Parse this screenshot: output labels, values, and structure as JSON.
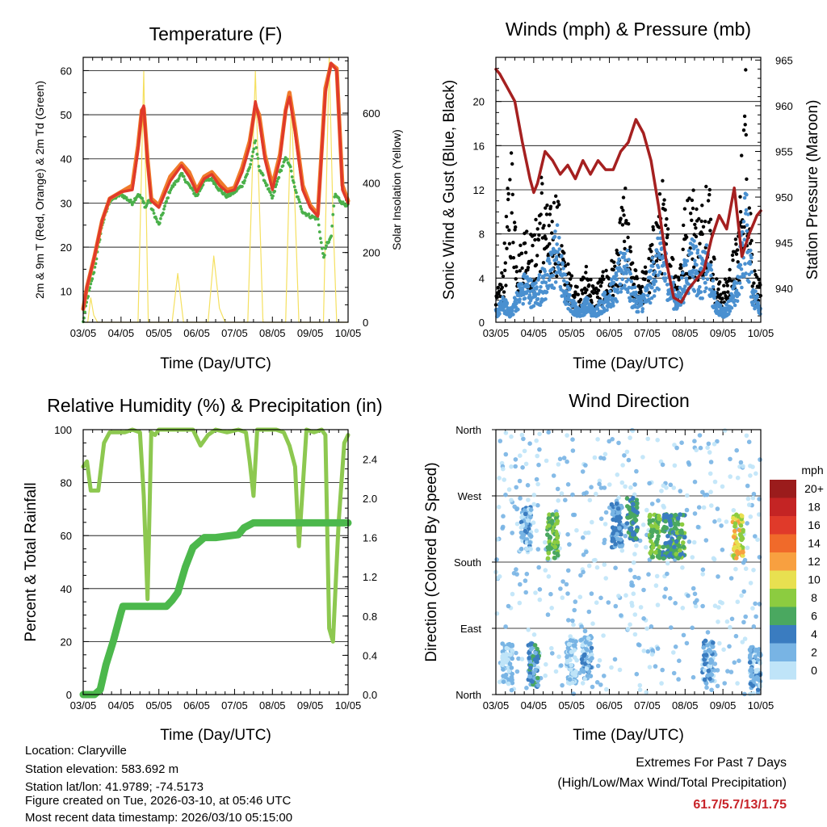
{
  "chart_data": [
    {
      "id": "temperature",
      "type": "line",
      "title": "Temperature (F)",
      "xlabel": "Time (Day/UTC)",
      "ylabel": "2m & 9m T (Red, Orange) & 2m Td (Green)",
      "y2label": "Solar Insolation (Yellow)",
      "x_ticks": [
        "03/05",
        "04/05",
        "05/05",
        "06/05",
        "07/05",
        "08/05",
        "09/05",
        "10/05"
      ],
      "xlim": [
        0,
        7
      ],
      "ylim": [
        3,
        63
      ],
      "y_ticks": [
        10,
        20,
        30,
        40,
        50,
        60
      ],
      "y2lim": [
        0,
        760
      ],
      "y2_ticks": [
        0,
        200,
        400,
        600
      ],
      "series": [
        {
          "name": "2m T",
          "color": "#e03a2a",
          "x": [
            0,
            0.1,
            0.3,
            0.5,
            0.7,
            1.0,
            1.3,
            1.45,
            1.55,
            1.6,
            1.7,
            1.8,
            2.0,
            2.3,
            2.6,
            2.8,
            3.0,
            3.2,
            3.4,
            3.6,
            3.8,
            4.0,
            4.2,
            4.4,
            4.55,
            4.65,
            4.8,
            5.0,
            5.2,
            5.35,
            5.45,
            5.6,
            5.8,
            6.0,
            6.2,
            6.4,
            6.55,
            6.7,
            6.85,
            7.0
          ],
          "values": [
            6,
            11,
            18,
            26,
            31,
            32.5,
            33,
            42,
            51,
            52,
            39,
            30.5,
            29,
            35,
            38.5,
            36,
            32.5,
            35.5,
            36.5,
            34,
            32.5,
            33,
            37,
            43,
            53,
            49,
            40,
            33,
            40,
            51,
            54,
            46,
            33,
            29,
            27,
            55,
            61.7,
            60,
            33,
            30
          ]
        },
        {
          "name": "9m T",
          "color": "#f07a2a",
          "x": [
            0,
            0.1,
            0.3,
            0.5,
            0.7,
            1.0,
            1.3,
            1.45,
            1.55,
            1.6,
            1.7,
            1.8,
            2.0,
            2.3,
            2.6,
            2.8,
            3.0,
            3.2,
            3.4,
            3.6,
            3.8,
            4.0,
            4.2,
            4.4,
            4.55,
            4.65,
            4.8,
            5.0,
            5.2,
            5.35,
            5.45,
            5.6,
            5.8,
            6.0,
            6.2,
            6.4,
            6.55,
            6.7,
            6.85,
            7.0
          ],
          "values": [
            6,
            11,
            18,
            26,
            31,
            32.5,
            34,
            43,
            51,
            51.5,
            40,
            31,
            29.5,
            36,
            39,
            37,
            33,
            36,
            37,
            35,
            33,
            33.5,
            38,
            44,
            52,
            50,
            41,
            34,
            41,
            51,
            55,
            47,
            34,
            29.5,
            27.5,
            56,
            61.5,
            60.5,
            34,
            30.5
          ]
        },
        {
          "name": "2m Td",
          "color": "#4ab04a",
          "x": [
            0,
            0.1,
            0.3,
            0.5,
            0.7,
            1.0,
            1.3,
            1.45,
            1.55,
            1.65,
            1.75,
            1.8,
            2.0,
            2.3,
            2.6,
            2.8,
            3.0,
            3.2,
            3.4,
            3.6,
            3.8,
            4.0,
            4.2,
            4.4,
            4.55,
            4.65,
            4.8,
            5.0,
            5.2,
            5.35,
            5.45,
            5.6,
            5.8,
            6.0,
            6.2,
            6.35,
            6.45,
            6.55,
            6.65,
            6.75,
            6.85,
            7.0
          ],
          "values": [
            3,
            8,
            15,
            25,
            30.5,
            32,
            30,
            32,
            31,
            29,
            31,
            29,
            25,
            33,
            36.5,
            34,
            31.5,
            35,
            35.5,
            33,
            31.5,
            32.5,
            34,
            38,
            44,
            38,
            35,
            31,
            37,
            40,
            39,
            33,
            28,
            27,
            26.5,
            17.5,
            21,
            22,
            32,
            31,
            30,
            29.5
          ]
        },
        {
          "name": "Solar Insolation",
          "color": "#f5e060",
          "axis": "y2",
          "x": [
            0,
            0.12,
            0.2,
            0.28,
            0.38,
            1.0,
            1.45,
            1.6,
            1.72,
            1.95,
            2.35,
            2.5,
            2.65,
            3.0,
            3.3,
            3.45,
            3.6,
            3.75,
            4.0,
            4.35,
            4.55,
            4.75,
            5.0,
            5.35,
            5.5,
            5.7,
            5.95,
            6.0,
            6.35,
            6.5,
            6.6,
            6.7,
            7.0
          ],
          "values": [
            0,
            0,
            70,
            20,
            0,
            0,
            0,
            720,
            0,
            0,
            0,
            140,
            0,
            0,
            0,
            190,
            40,
            0,
            0,
            0,
            720,
            0,
            0,
            0,
            640,
            0,
            0,
            0,
            0,
            760,
            300,
            0,
            0
          ]
        }
      ]
    },
    {
      "id": "winds",
      "type": "scatter",
      "title": "Winds (mph) & Pressure (mb)",
      "xlabel": "Time (Day/UTC)",
      "ylabel": "Sonic Wind & Gust (Blue, Black)",
      "y2label": "Station Pressure (Maroon)",
      "x_ticks": [
        "03/05",
        "04/05",
        "05/05",
        "06/05",
        "07/05",
        "08/05",
        "09/05",
        "10/05"
      ],
      "xlim": [
        0,
        7
      ],
      "ylim": [
        0,
        24
      ],
      "y_ticks": [
        0,
        4,
        8,
        12,
        16,
        20
      ],
      "y2lim": [
        936.3,
        965.3
      ],
      "y2_ticks": [
        940,
        945,
        950,
        955,
        960,
        965
      ],
      "series": [
        {
          "name": "Sonic Wind",
          "color": "#4a90d0",
          "x": [
            0,
            0.2,
            0.4,
            0.6,
            0.8,
            1.0,
            1.2,
            1.4,
            1.6,
            1.8,
            2.0,
            2.2,
            2.4,
            2.6,
            2.8,
            3.0,
            3.2,
            3.4,
            3.6,
            3.8,
            4.0,
            4.2,
            4.4,
            4.6,
            4.8,
            5.0,
            5.2,
            5.4,
            5.6,
            5.8,
            6.0,
            6.2,
            6.4,
            6.6,
            6.8,
            7.0
          ],
          "values": [
            1,
            2,
            1,
            3,
            4,
            3,
            4,
            5,
            8,
            4,
            2,
            1,
            2,
            1,
            2,
            3,
            4,
            7,
            3,
            2,
            3,
            6,
            7,
            4,
            2,
            5,
            7,
            5,
            6,
            2,
            1,
            2,
            4,
            11,
            3,
            1.5
          ]
        },
        {
          "name": "Gust",
          "color": "#000000",
          "x": [
            0,
            0.2,
            0.4,
            0.6,
            0.8,
            1.0,
            1.2,
            1.4,
            1.6,
            1.8,
            2.0,
            2.2,
            2.4,
            2.6,
            2.8,
            3.0,
            3.2,
            3.4,
            3.6,
            3.8,
            4.0,
            4.2,
            4.4,
            4.6,
            4.8,
            5.0,
            5.2,
            5.4,
            5.6,
            5.8,
            6.0,
            6.2,
            6.4,
            6.6,
            6.8,
            7.0
          ],
          "values": [
            2,
            5,
            16,
            6,
            9,
            7,
            13,
            9,
            12,
            6,
            4,
            3,
            5,
            3,
            4,
            5,
            6,
            12,
            5,
            4,
            5,
            9,
            12,
            7,
            4,
            10,
            12,
            9,
            15,
            4,
            3,
            5,
            8,
            22,
            5,
            3
          ]
        },
        {
          "name": "Station Pressure",
          "color": "#a52020",
          "axis": "y2",
          "x": [
            0,
            0.1,
            0.3,
            0.5,
            0.7,
            0.9,
            1.0,
            1.1,
            1.3,
            1.5,
            1.7,
            1.9,
            2.1,
            2.3,
            2.5,
            2.7,
            2.9,
            3.1,
            3.3,
            3.5,
            3.7,
            3.9,
            4.1,
            4.3,
            4.5,
            4.7,
            4.9,
            5.1,
            5.3,
            5.5,
            5.7,
            5.9,
            6.1,
            6.3,
            6.5,
            6.7,
            6.9,
            7.0
          ],
          "values": [
            964,
            963.5,
            962,
            960.5,
            956,
            952,
            950.5,
            951.5,
            955,
            954,
            952.5,
            953.5,
            952,
            954,
            952.5,
            954,
            953,
            953,
            955,
            956,
            958.5,
            957,
            954,
            949,
            943,
            939,
            938.5,
            940,
            941,
            942,
            945.5,
            948,
            946.5,
            951,
            943.5,
            946,
            948,
            948.5
          ]
        }
      ]
    },
    {
      "id": "humidity",
      "type": "line",
      "title": "Relative Humidity (%) & Precipitation (in)",
      "xlabel": "Time (Day/UTC)",
      "ylabel": "Percent & Total Rainfall",
      "x_ticks": [
        "03/05",
        "04/05",
        "05/05",
        "06/05",
        "07/05",
        "08/05",
        "09/05",
        "10/05"
      ],
      "xlim": [
        0,
        7
      ],
      "ylim": [
        0,
        100
      ],
      "y_ticks": [
        0,
        20,
        40,
        60,
        80,
        100
      ],
      "y2lim": [
        0,
        2.7
      ],
      "y2_ticks": [
        0.0,
        0.4,
        0.8,
        1.2,
        1.6,
        2.0,
        2.4
      ],
      "series": [
        {
          "name": "Relative Humidity",
          "color": "#8dc850",
          "x": [
            0,
            0.1,
            0.2,
            0.4,
            0.55,
            0.7,
            0.9,
            1.1,
            1.3,
            1.5,
            1.6,
            1.7,
            1.8,
            1.9,
            2.0,
            2.3,
            2.6,
            2.9,
            3.1,
            3.3,
            3.5,
            3.8,
            4.1,
            4.3,
            4.4,
            4.5,
            4.6,
            4.8,
            5.1,
            5.3,
            5.45,
            5.6,
            5.7,
            5.9,
            6.1,
            6.3,
            6.4,
            6.5,
            6.6,
            6.75,
            6.9,
            7.0
          ],
          "values": [
            86,
            88,
            77,
            77,
            95,
            99,
            99,
            99,
            100,
            99,
            75,
            36,
            99,
            98,
            100,
            100,
            100,
            100,
            94,
            98,
            100,
            99,
            100,
            99,
            88,
            75,
            100,
            100,
            100,
            99,
            94,
            86,
            56,
            100,
            99,
            100,
            98,
            25,
            20,
            65,
            95,
            98
          ]
        },
        {
          "name": "Total Precipitation",
          "color": "#4cb84c",
          "axis": "y2",
          "x": [
            0,
            0.3,
            0.45,
            0.6,
            0.8,
            1.0,
            1.05,
            1.2,
            1.5,
            1.9,
            2.2,
            2.35,
            2.5,
            2.7,
            2.9,
            3.2,
            3.5,
            3.7,
            4.1,
            4.25,
            4.5,
            4.8,
            5.2,
            5.6,
            5.9,
            6.2,
            6.6,
            7.0
          ],
          "values": [
            0,
            0,
            0.05,
            0.3,
            0.55,
            0.84,
            0.9,
            0.9,
            0.9,
            0.9,
            0.9,
            0.96,
            1.04,
            1.3,
            1.5,
            1.6,
            1.6,
            1.61,
            1.63,
            1.7,
            1.75,
            1.75,
            1.75,
            1.75,
            1.75,
            1.75,
            1.75,
            1.75
          ]
        }
      ]
    },
    {
      "id": "direction",
      "type": "scatter",
      "title": "Wind Direction",
      "xlabel": "Time (Day/UTC)",
      "ylabel": "Direction (Colored By Speed)",
      "x_ticks": [
        "03/05",
        "04/05",
        "05/05",
        "06/05",
        "07/05",
        "08/05",
        "09/05",
        "10/05"
      ],
      "xlim": [
        0,
        7
      ],
      "ylim": [
        0,
        360
      ],
      "y_ticks": [
        "North",
        "East",
        "South",
        "West",
        "North"
      ],
      "y_tick_values": [
        0,
        90,
        180,
        270,
        360
      ],
      "colorbar_title": "mph",
      "colorbar_labels": [
        "20+",
        "18",
        "16",
        "14",
        "12",
        "10",
        "8",
        "6",
        "4",
        "2",
        "0"
      ],
      "colorbar_colors": [
        "#9b1c1c",
        "#c42424",
        "#e03a2a",
        "#f06a2a",
        "#f8a040",
        "#e8e050",
        "#8ccc40",
        "#4aa860",
        "#3a7cc0",
        "#78b4e4",
        "#bfe4f8"
      ],
      "clusters": [
        {
          "day": 0.3,
          "dir": 40,
          "speed": 2
        },
        {
          "day": 0.8,
          "dir": 225,
          "speed": 3
        },
        {
          "day": 1.0,
          "dir": 40,
          "speed": 5
        },
        {
          "day": 1.5,
          "dir": 215,
          "speed": 8
        },
        {
          "day": 2.0,
          "dir": 45,
          "speed": 2
        },
        {
          "day": 2.4,
          "dir": 50,
          "speed": 3
        },
        {
          "day": 3.2,
          "dir": 230,
          "speed": 4
        },
        {
          "day": 3.6,
          "dir": 240,
          "speed": 6
        },
        {
          "day": 4.2,
          "dir": 215,
          "speed": 8
        },
        {
          "day": 4.55,
          "dir": 215,
          "speed": 6
        },
        {
          "day": 4.85,
          "dir": 215,
          "speed": 7
        },
        {
          "day": 5.6,
          "dir": 45,
          "speed": 3
        },
        {
          "day": 6.4,
          "dir": 215,
          "speed": 11
        },
        {
          "day": 6.85,
          "dir": 35,
          "speed": 3
        }
      ]
    }
  ],
  "footer": {
    "location": "Location: Claryville",
    "elevation": "Station elevation: 583.692 m",
    "latlon": "Station lat/lon: 41.9789; -74.5173",
    "created": "Figure created on Tue, 2026-03-10, at 05:46 UTC",
    "recent": "Most recent data timestamp: 2026/03/10 05:15:00"
  },
  "extremes": {
    "line1": "Extremes For Past 7 Days",
    "line2": "(High/Low/Max Wind/Total Precipitation)",
    "values": "61.7/5.7/13/1.75",
    "value_color": "#c8242a"
  }
}
